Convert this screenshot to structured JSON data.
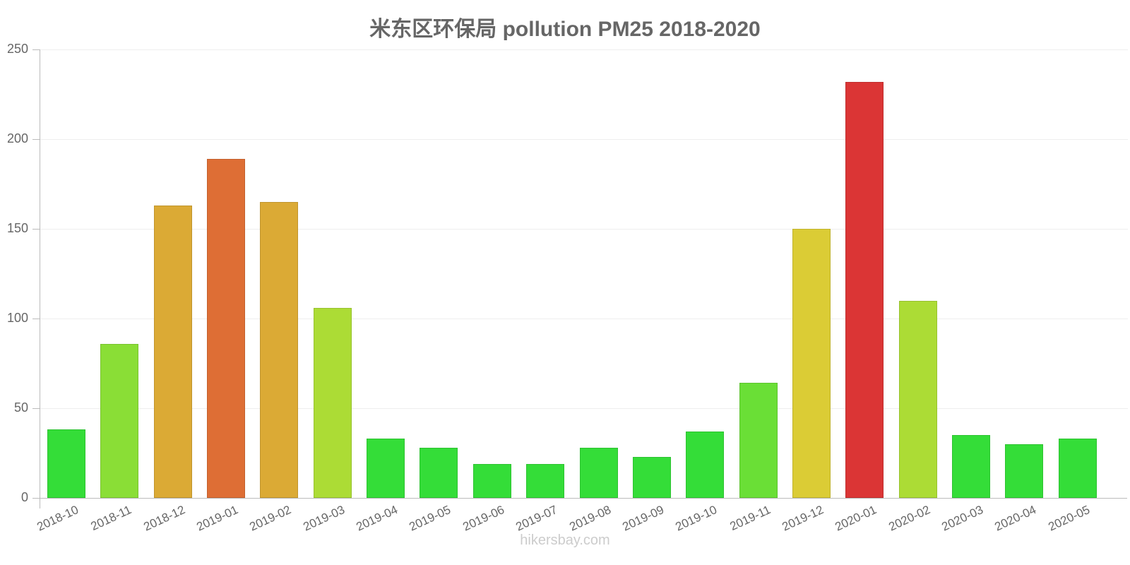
{
  "chart_data": {
    "type": "bar",
    "title": "米东区环保局 pollution PM25 2018-2020",
    "xlabel": "",
    "ylabel": "",
    "ylim": [
      0,
      250
    ],
    "yticks": [
      0,
      50,
      100,
      150,
      200,
      250
    ],
    "grid": true,
    "legend": null,
    "categories": [
      "2018-10",
      "2018-11",
      "2018-12",
      "2019-01",
      "2019-02",
      "2019-03",
      "2019-04",
      "2019-05",
      "2019-06",
      "2019-07",
      "2019-08",
      "2019-09",
      "2019-10",
      "2019-11",
      "2019-12",
      "2020-01",
      "2020-02",
      "2020-03",
      "2020-04",
      "2020-05"
    ],
    "values": [
      38,
      86,
      163,
      189,
      165,
      106,
      33,
      28,
      19,
      19,
      28,
      23,
      37,
      64,
      150,
      232,
      110,
      35,
      30,
      33
    ],
    "colors": [
      "#34dd38",
      "#8ade36",
      "#dbaa35",
      "#de6e35",
      "#dbaa35",
      "#acdc35",
      "#34dd38",
      "#34dd38",
      "#34dd38",
      "#34dd38",
      "#34dd38",
      "#34dd38",
      "#34dd38",
      "#6adf36",
      "#dbcc35",
      "#db3535",
      "#acdc35",
      "#34dd38",
      "#34dd38",
      "#34dd38"
    ]
  },
  "footer": {
    "watermark": "hikersbay.com"
  }
}
